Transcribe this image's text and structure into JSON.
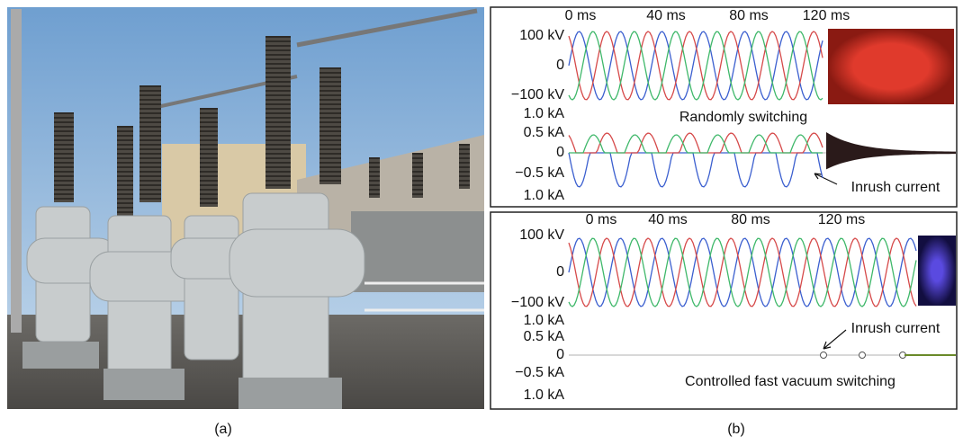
{
  "panels": {
    "a": {
      "caption": "(a)"
    },
    "b": {
      "caption": "(b)",
      "top": {
        "time_labels": [
          "0 ms",
          "40 ms",
          "80 ms",
          "120 ms"
        ],
        "voltage_labels": [
          "100 kV",
          "0",
          "−100 kV"
        ],
        "current_labels": [
          "1.0 kA",
          "0.5 kA",
          "0",
          "−0.5 kA",
          "1.0 kA"
        ],
        "annotations": [
          "Randomly switching",
          "Inrush current"
        ]
      },
      "bottom": {
        "time_labels": [
          "0 ms",
          "40 ms",
          "80 ms",
          "120 ms"
        ],
        "voltage_labels": [
          "100 kV",
          "0",
          "−100 kV"
        ],
        "current_labels": [
          "1.0 kA",
          "0.5 kA",
          "0",
          "−0.5 kA",
          "1.0 kA"
        ],
        "annotations": [
          "Inrush current",
          "Controlled fast vacuum switching"
        ]
      }
    }
  }
}
